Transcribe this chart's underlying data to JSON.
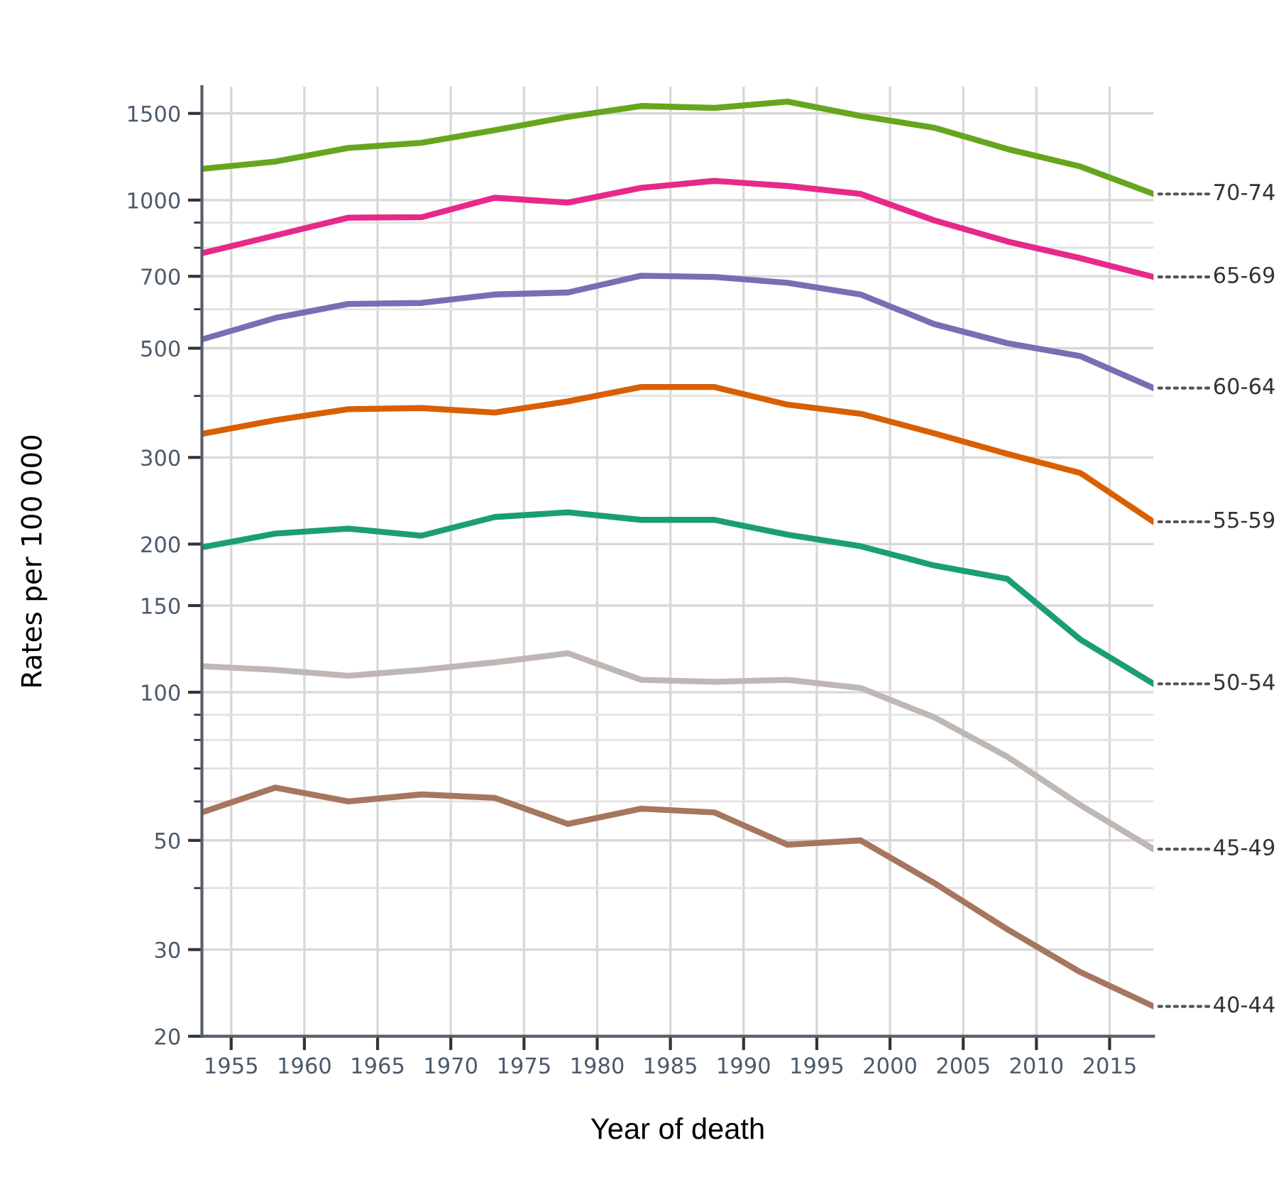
{
  "chart_data": {
    "type": "line",
    "xlabel": "Year of death",
    "ylabel": "Rates per 100 000",
    "log": "y",
    "grid": true,
    "legend": false,
    "marker": "none",
    "line_style": "solid",
    "x": [
      1953,
      1958,
      1963,
      1968,
      1973,
      1978,
      1983,
      1988,
      1993,
      1998,
      2003,
      2008,
      2013,
      2018
    ],
    "xlim": [
      1953,
      2018
    ],
    "xticks": [
      1955,
      1960,
      1965,
      1970,
      1975,
      1980,
      1985,
      1990,
      1995,
      2000,
      2005,
      2010,
      2015
    ],
    "ylim": [
      20,
      1700
    ],
    "yticks": [
      20,
      30,
      50,
      100,
      150,
      200,
      300,
      500,
      700,
      1000,
      1500
    ],
    "series": [
      {
        "name": "70-74",
        "color": "#66a61e",
        "values": [
          1157,
          1197,
          1276,
          1307,
          1387,
          1476,
          1553,
          1539,
          1585,
          1482,
          1403,
          1270,
          1170,
          1029
        ]
      },
      {
        "name": "65-69",
        "color": "#e7298a",
        "values": [
          780,
          847,
          921,
          923,
          1011,
          988,
          1059,
          1094,
          1068,
          1029,
          910,
          824,
          762,
          698
        ]
      },
      {
        "name": "60-64",
        "color": "#7570b3",
        "values": [
          521,
          576,
          615,
          618,
          643,
          649,
          702,
          698,
          679,
          643,
          560,
          512,
          482,
          415
        ]
      },
      {
        "name": "55-59",
        "color": "#d95f02",
        "values": [
          335,
          357,
          376,
          378,
          370,
          390,
          417,
          417,
          384,
          368,
          336,
          305,
          279,
          222
        ]
      },
      {
        "name": "50-54",
        "color": "#1b9e77",
        "values": [
          197,
          210,
          215,
          208,
          227,
          232,
          224,
          224,
          209,
          198,
          181,
          170,
          128,
          104
        ]
      },
      {
        "name": "45-49",
        "color": "#bfb7b3",
        "values": [
          113,
          111,
          108,
          111,
          115,
          120,
          106,
          105,
          106,
          102,
          89,
          74,
          59,
          48
        ]
      },
      {
        "name": "40-44",
        "color": "#a6765e",
        "values": [
          57,
          64,
          60,
          62,
          61,
          54,
          58,
          57,
          49,
          50,
          41,
          33,
          27,
          23
        ]
      }
    ]
  }
}
